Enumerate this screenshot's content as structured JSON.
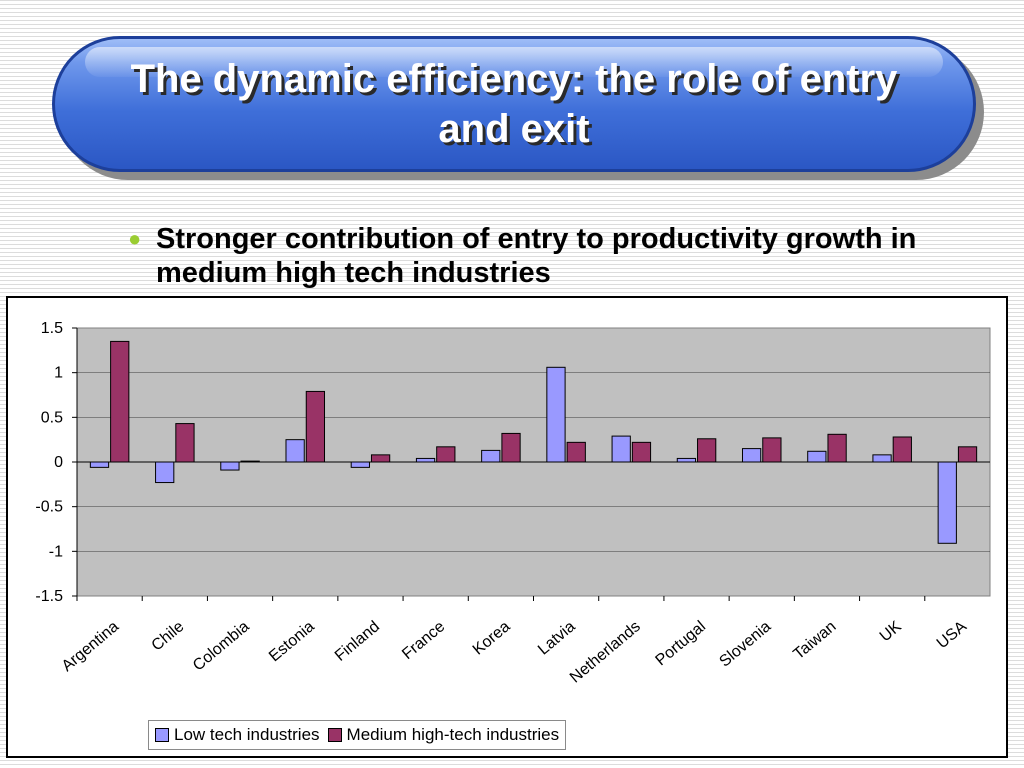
{
  "slide": {
    "title": "The dynamic efficiency:  the role of entry and exit",
    "bullet": "Stronger contribution of entry to productivity growth in medium high tech industries"
  },
  "colors": {
    "low_tech": "#9999ff",
    "medium_high_tech": "#993366",
    "plot_bg": "#c0c0c0"
  },
  "chart_data": {
    "type": "bar",
    "categories": [
      "Argentina",
      "Chile",
      "Colombia",
      "Estonia",
      "Finland",
      "France",
      "Korea",
      "Latvia",
      "Netherlands",
      "Portugal",
      "Slovenia",
      "Taiwan",
      "UK",
      "USA"
    ],
    "series": [
      {
        "name": "Low tech industries",
        "values": [
          -0.06,
          -0.23,
          -0.09,
          0.25,
          -0.06,
          0.04,
          0.13,
          1.06,
          0.29,
          0.04,
          0.15,
          0.12,
          0.08,
          -0.91
        ]
      },
      {
        "name": "Medium high-tech industries",
        "values": [
          1.35,
          0.43,
          0.01,
          0.79,
          0.08,
          0.17,
          0.32,
          0.22,
          0.22,
          0.26,
          0.27,
          0.31,
          0.28,
          0.17
        ]
      }
    ],
    "ylim": [
      -1.5,
      1.5
    ],
    "yticks": [
      "1.5",
      "1",
      "0.5",
      "0",
      "-0.5",
      "-1",
      "-1.5"
    ],
    "grid": true,
    "legend_position": "bottom"
  }
}
